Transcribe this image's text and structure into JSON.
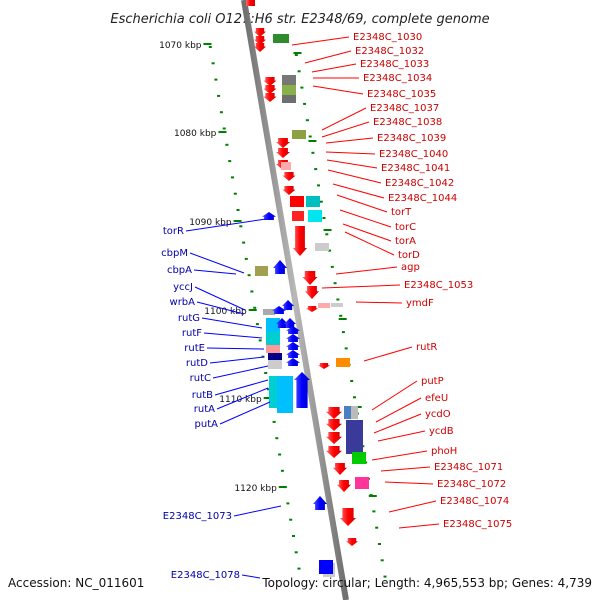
{
  "title": "Escherichia coli O127:H6 str. E2348/69, complete genome",
  "footer": {
    "accession": "Accession: NC_011601",
    "topology": "Topology: circular; Length: 4,965,553 bp; Genes: 4,739"
  },
  "scale_labels": [
    "1070 kbp",
    "1080 kbp",
    "1090 kbp",
    "1100 kbp",
    "1110 kbp",
    "1120 kbp"
  ],
  "right_genes": [
    "E2348C_1030",
    "E2348C_1032",
    "E2348C_1033",
    "E2348C_1034",
    "E2348C_1035",
    "E2348C_1037",
    "E2348C_1038",
    "E2348C_1039",
    "E2348C_1040",
    "E2348C_1041",
    "E2348C_1042",
    "E2348C_1044",
    "torT",
    "torC",
    "torA",
    "torD",
    "agp",
    "E2348C_1053",
    "ymdF",
    "rutR",
    "putP",
    "efeU",
    "ycdO",
    "ycdB",
    "phoH",
    "E2348C_1071",
    "E2348C_1072",
    "E2348C_1074",
    "E2348C_1075"
  ],
  "left_genes": [
    "torR",
    "cbpM",
    "cbpA",
    "yccJ",
    "wrbA",
    "rutG",
    "rutF",
    "rutE",
    "rutD",
    "rutC",
    "rutB",
    "rutA",
    "putA",
    "E2348C_1073",
    "E2348C_1078"
  ],
  "colors": {
    "forward_strand": "#ff0000",
    "reverse_strand": "#0000ff",
    "axis": "#808080",
    "ticks": "#008000",
    "right_labels": "#cc0000",
    "left_labels": "#0000aa"
  }
}
